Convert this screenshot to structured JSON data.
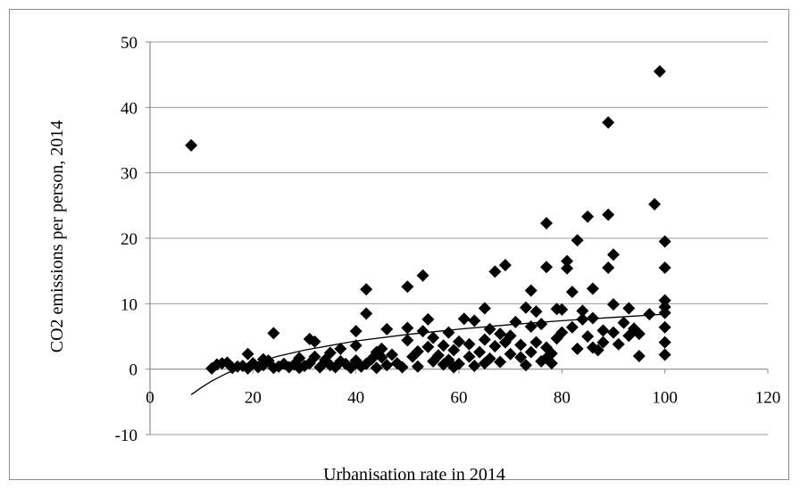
{
  "chart_data": {
    "type": "scatter",
    "title": "",
    "xlabel": "Urbanisation rate in 2014",
    "ylabel": "CO2 emissions per person, 2014",
    "xlim": [
      0,
      120
    ],
    "ylim": [
      -10,
      50
    ],
    "x_ticks": [
      0,
      20,
      40,
      60,
      80,
      100,
      120
    ],
    "y_ticks": [
      -10,
      0,
      10,
      20,
      30,
      40,
      50
    ],
    "grid": "horizontal",
    "legend": "none",
    "marker": "diamond",
    "colors": {
      "marker": "#000000",
      "trendline": "#000000",
      "gridline": "#9a9a9a",
      "axis": "#8c8c8c"
    },
    "trendline": {
      "type": "logarithmic",
      "points": [
        [
          8,
          -3.9
        ],
        [
          10,
          -2.8
        ],
        [
          12,
          -1.8
        ],
        [
          15,
          -0.6
        ],
        [
          20,
          0.9
        ],
        [
          25,
          2.0
        ],
        [
          30,
          2.9
        ],
        [
          40,
          4.3
        ],
        [
          50,
          5.3
        ],
        [
          60,
          6.1
        ],
        [
          70,
          6.8
        ],
        [
          80,
          7.4
        ],
        [
          90,
          7.9
        ],
        [
          100,
          8.4
        ]
      ]
    },
    "points": [
      [
        8,
        34.2
      ],
      [
        12,
        0.1
      ],
      [
        13,
        0.7
      ],
      [
        14,
        0.9
      ],
      [
        15,
        1.0
      ],
      [
        16,
        0.2
      ],
      [
        17,
        0.4
      ],
      [
        18,
        0.5
      ],
      [
        19,
        2.3
      ],
      [
        19,
        0.1
      ],
      [
        20,
        0.9
      ],
      [
        21,
        0.3
      ],
      [
        22,
        1.5
      ],
      [
        22,
        0.6
      ],
      [
        23,
        1.3
      ],
      [
        24,
        0.2
      ],
      [
        24,
        5.5
      ],
      [
        25,
        0.4
      ],
      [
        26,
        0.8
      ],
      [
        27,
        0.3
      ],
      [
        28,
        0.7
      ],
      [
        29,
        1.7
      ],
      [
        29,
        0.2
      ],
      [
        30,
        0.5
      ],
      [
        31,
        4.6
      ],
      [
        31,
        0.9
      ],
      [
        32,
        4.2
      ],
      [
        32,
        1.9
      ],
      [
        33,
        0.3
      ],
      [
        34,
        1.4
      ],
      [
        35,
        2.5
      ],
      [
        35,
        0.6
      ],
      [
        36,
        0.3
      ],
      [
        37,
        3.1
      ],
      [
        37,
        1.2
      ],
      [
        38,
        0.8
      ],
      [
        39,
        0.2
      ],
      [
        40,
        5.8
      ],
      [
        40,
        3.6
      ],
      [
        40,
        1.3
      ],
      [
        41,
        0.4
      ],
      [
        42,
        12.2
      ],
      [
        42,
        8.5
      ],
      [
        42,
        0.8
      ],
      [
        43,
        1.5
      ],
      [
        44,
        0.2
      ],
      [
        44,
        2.6
      ],
      [
        45,
        3.1
      ],
      [
        45,
        1.8
      ],
      [
        46,
        6.1
      ],
      [
        46,
        0.6
      ],
      [
        47,
        2.2
      ],
      [
        48,
        0.9
      ],
      [
        49,
        0.3
      ],
      [
        50,
        12.6
      ],
      [
        50,
        6.3
      ],
      [
        50,
        4.4
      ],
      [
        51,
        1.9
      ],
      [
        52,
        0.4
      ],
      [
        52,
        2.7
      ],
      [
        53,
        14.3
      ],
      [
        53,
        5.8
      ],
      [
        54,
        7.6
      ],
      [
        54,
        3.4
      ],
      [
        55,
        1.2
      ],
      [
        55,
        4.8
      ],
      [
        56,
        2.1
      ],
      [
        57,
        0.7
      ],
      [
        57,
        3.6
      ],
      [
        58,
        5.6
      ],
      [
        58,
        1.4
      ],
      [
        59,
        2.9
      ],
      [
        59,
        0.3
      ],
      [
        60,
        0.8
      ],
      [
        60,
        4.2
      ],
      [
        61,
        7.7
      ],
      [
        62,
        1.9
      ],
      [
        62,
        3.8
      ],
      [
        63,
        7.4
      ],
      [
        63,
        0.5
      ],
      [
        64,
        2.6
      ],
      [
        65,
        9.3
      ],
      [
        65,
        0.9
      ],
      [
        65,
        4.5
      ],
      [
        66,
        1.6
      ],
      [
        66,
        6.1
      ],
      [
        67,
        3.5
      ],
      [
        67,
        14.9
      ],
      [
        68,
        5.4
      ],
      [
        68,
        1.1
      ],
      [
        69,
        4.1
      ],
      [
        69,
        15.9
      ],
      [
        70,
        2.3
      ],
      [
        70,
        5.1
      ],
      [
        71,
        7.2
      ],
      [
        72,
        1.8
      ],
      [
        72,
        3.7
      ],
      [
        73,
        9.4
      ],
      [
        73,
        0.6
      ],
      [
        74,
        12.0
      ],
      [
        74,
        6.5
      ],
      [
        74,
        2.6
      ],
      [
        75,
        8.8
      ],
      [
        75,
        4.1
      ],
      [
        76,
        1.2
      ],
      [
        76,
        6.9
      ],
      [
        77,
        22.3
      ],
      [
        77,
        15.6
      ],
      [
        77,
        3.3
      ],
      [
        77,
        1.7
      ],
      [
        78,
        2.4
      ],
      [
        78,
        0.9
      ],
      [
        79,
        9.2
      ],
      [
        79,
        4.7
      ],
      [
        80,
        9.1
      ],
      [
        80,
        5.6
      ],
      [
        81,
        16.5
      ],
      [
        81,
        15.4
      ],
      [
        82,
        11.8
      ],
      [
        82,
        6.4
      ],
      [
        83,
        19.7
      ],
      [
        83,
        3.1
      ],
      [
        84,
        8.9
      ],
      [
        84,
        7.6
      ],
      [
        85,
        23.3
      ],
      [
        85,
        5.0
      ],
      [
        86,
        12.3
      ],
      [
        86,
        7.8
      ],
      [
        86,
        3.3
      ],
      [
        87,
        2.9
      ],
      [
        88,
        5.9
      ],
      [
        88,
        4.1
      ],
      [
        89,
        23.6
      ],
      [
        89,
        15.5
      ],
      [
        89,
        37.7
      ],
      [
        90,
        17.5
      ],
      [
        90,
        9.9
      ],
      [
        90,
        5.6
      ],
      [
        91,
        3.8
      ],
      [
        92,
        7.1
      ],
      [
        93,
        9.3
      ],
      [
        93,
        5.1
      ],
      [
        94,
        6.2
      ],
      [
        95,
        2.0
      ],
      [
        95,
        5.4
      ],
      [
        97,
        8.4
      ],
      [
        98,
        25.2
      ],
      [
        99,
        45.5
      ],
      [
        100,
        19.5
      ],
      [
        100,
        15.5
      ],
      [
        100,
        10.5
      ],
      [
        100,
        9.5
      ],
      [
        100,
        8.6
      ],
      [
        100,
        6.4
      ],
      [
        100,
        4.1
      ],
      [
        100,
        2.2
      ]
    ]
  }
}
